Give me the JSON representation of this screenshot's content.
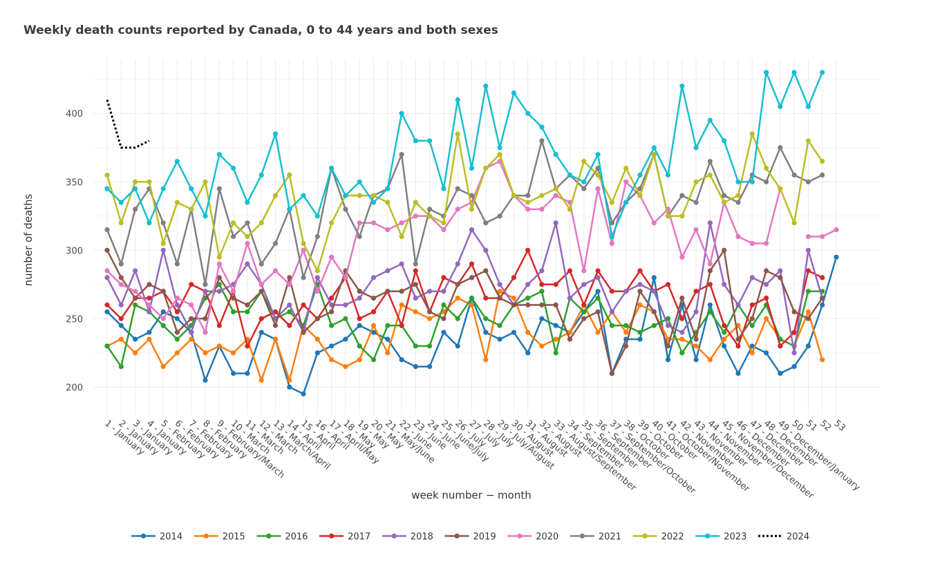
{
  "chart_data": {
    "type": "line",
    "title": "Weekly death counts reported by Canada, 0 to 44 years and both sexes",
    "xlabel": "week number − month",
    "ylabel": "number of deaths",
    "ylim": [
      180,
      440
    ],
    "yticks": [
      200,
      250,
      300,
      350,
      400
    ],
    "grid": true,
    "legend_position": "bottom",
    "categories": [
      "1 - January",
      "2 - January",
      "3 - January",
      "4 - January",
      "5 - February",
      "6 - February",
      "7 - February",
      "8 - February",
      "9 - February/March",
      "10 - March",
      "11 - March",
      "12 - March",
      "13 - March/April",
      "14 - April",
      "15 - April",
      "16 - April",
      "17 - April/May",
      "18 - May",
      "19 - May",
      "20 - May",
      "21 - May/June",
      "22 - June",
      "23 - June",
      "24 - June",
      "25 - June/July",
      "26 - July",
      "27 - July",
      "28 - July",
      "29 - July/August",
      "30 - August",
      "31 - August",
      "32 - August",
      "33 - August/September",
      "34 - September",
      "35 - September",
      "36 - September",
      "37 - September/October",
      "38 - October",
      "39 - October",
      "40 - October",
      "41 - October/November",
      "42 - November",
      "43 - November",
      "44 - November",
      "45 - November/December",
      "46 - December",
      "47 - December",
      "48 - December",
      "49 - December/January",
      "50",
      "51",
      "52",
      "53"
    ],
    "tick_labels": [
      "1 - January",
      "2 - January",
      "3 - January",
      "4 - January",
      "5 - February",
      "6 - February",
      "7 - February",
      "8 - February",
      "9 - February/March",
      "10 - March",
      "11 - March",
      "12 - March",
      "13 - March/April",
      "14 - April",
      "15 - April",
      "16 - April",
      "17 - April/May",
      "18 - May",
      "19 - May",
      "20 - May",
      "21 - May/June",
      "22 - June",
      "23 - June",
      "24 - June",
      "25 - June/July",
      "26 - July",
      "27 - July",
      "28 - July",
      "29 - July/August",
      "30 - August",
      "31 - August",
      "32 - August",
      "33 - August/September",
      "34 - September",
      "35 - September",
      "36 - September",
      "37 - September/October",
      "38 - October",
      "39 - October",
      "40 - October",
      "41 - October/November",
      "42 - November",
      "43 - November",
      "44 - November",
      "45 - November/December",
      "46 - December",
      "47 - December",
      "48 - December",
      "49 - December/January",
      "50",
      "51",
      "52",
      "53"
    ],
    "series": [
      {
        "name": "2014",
        "color": "#1f77b4",
        "dash": false,
        "markers": true,
        "values": [
          255,
          245,
          235,
          240,
          255,
          250,
          240,
          205,
          230,
          210,
          210,
          240,
          235,
          200,
          195,
          225,
          230,
          235,
          245,
          240,
          235,
          220,
          215,
          215,
          240,
          230,
          265,
          240,
          235,
          240,
          225,
          250,
          245,
          240,
          255,
          270,
          210,
          235,
          235,
          280,
          220,
          260,
          220,
          260,
          230,
          210,
          230,
          225,
          210,
          215,
          230,
          260,
          295
        ]
      },
      {
        "name": "2015",
        "color": "#ff7f0e",
        "dash": false,
        "markers": true,
        "values": [
          230,
          235,
          225,
          235,
          215,
          225,
          235,
          225,
          230,
          225,
          235,
          205,
          235,
          205,
          245,
          235,
          220,
          215,
          220,
          245,
          225,
          260,
          255,
          250,
          255,
          265,
          260,
          220,
          270,
          265,
          240,
          230,
          235,
          240,
          260,
          240,
          255,
          240,
          260,
          255,
          235,
          235,
          230,
          220,
          235,
          245,
          225,
          250,
          235,
          230,
          255,
          220,
          null
        ]
      },
      {
        "name": "2016",
        "color": "#2ca02c",
        "dash": false,
        "markers": true,
        "values": [
          230,
          215,
          260,
          255,
          245,
          235,
          245,
          265,
          275,
          255,
          255,
          270,
          250,
          255,
          245,
          275,
          245,
          250,
          230,
          220,
          245,
          245,
          230,
          230,
          260,
          250,
          265,
          250,
          245,
          260,
          265,
          270,
          225,
          265,
          255,
          265,
          245,
          245,
          240,
          245,
          250,
          225,
          240,
          255,
          240,
          260,
          245,
          260,
          235,
          230,
          270,
          270,
          null
        ]
      },
      {
        "name": "2017",
        "color": "#d62728",
        "dash": false,
        "markers": true,
        "values": [
          260,
          250,
          265,
          265,
          270,
          255,
          275,
          270,
          245,
          270,
          230,
          250,
          255,
          245,
          260,
          250,
          265,
          280,
          250,
          255,
          270,
          245,
          285,
          255,
          280,
          275,
          290,
          265,
          265,
          280,
          300,
          275,
          275,
          285,
          260,
          285,
          270,
          270,
          285,
          270,
          275,
          250,
          270,
          275,
          245,
          230,
          260,
          265,
          230,
          240,
          285,
          280,
          null
        ]
      },
      {
        "name": "2018",
        "color": "#9467bd",
        "dash": false,
        "markers": true,
        "values": [
          280,
          260,
          285,
          255,
          300,
          260,
          240,
          270,
          270,
          275,
          290,
          275,
          250,
          260,
          240,
          280,
          260,
          260,
          265,
          280,
          285,
          290,
          265,
          270,
          270,
          290,
          315,
          300,
          275,
          260,
          275,
          285,
          320,
          265,
          275,
          280,
          255,
          270,
          275,
          270,
          245,
          240,
          255,
          320,
          275,
          260,
          280,
          275,
          285,
          225,
          300,
          265,
          null
        ]
      },
      {
        "name": "2019",
        "color": "#8c564b",
        "dash": false,
        "markers": true,
        "values": [
          300,
          280,
          265,
          275,
          270,
          240,
          250,
          250,
          280,
          265,
          260,
          270,
          245,
          280,
          240,
          250,
          255,
          285,
          270,
          265,
          270,
          270,
          275,
          255,
          250,
          275,
          280,
          285,
          265,
          260,
          260,
          260,
          260,
          235,
          250,
          255,
          210,
          230,
          270,
          255,
          230,
          265,
          235,
          285,
          300,
          235,
          250,
          285,
          280,
          255,
          250,
          265,
          null
        ]
      },
      {
        "name": "2020",
        "color": "#e377c2",
        "dash": false,
        "markers": true,
        "values": [
          285,
          275,
          270,
          260,
          250,
          265,
          260,
          240,
          290,
          270,
          305,
          275,
          285,
          275,
          300,
          270,
          295,
          280,
          320,
          320,
          315,
          320,
          325,
          325,
          315,
          330,
          335,
          360,
          365,
          340,
          330,
          330,
          340,
          335,
          285,
          345,
          305,
          350,
          340,
          320,
          330,
          295,
          315,
          290,
          335,
          310,
          305,
          305,
          345,
          null,
          310,
          310,
          315
        ]
      },
      {
        "name": "2021",
        "color": "#7f7f7f",
        "dash": false,
        "markers": true,
        "values": [
          315,
          290,
          330,
          345,
          320,
          290,
          330,
          275,
          345,
          310,
          320,
          290,
          305,
          330,
          280,
          310,
          360,
          330,
          310,
          340,
          345,
          370,
          290,
          330,
          325,
          345,
          340,
          320,
          325,
          340,
          340,
          380,
          345,
          355,
          345,
          360,
          320,
          335,
          345,
          370,
          325,
          340,
          335,
          365,
          340,
          335,
          355,
          350,
          375,
          355,
          350,
          355,
          null
        ]
      },
      {
        "name": "2022",
        "color": "#bcbd22",
        "dash": false,
        "markers": true,
        "values": [
          355,
          320,
          350,
          350,
          305,
          335,
          330,
          350,
          295,
          320,
          310,
          320,
          340,
          355,
          305,
          285,
          320,
          340,
          340,
          340,
          335,
          310,
          335,
          325,
          320,
          385,
          330,
          360,
          370,
          340,
          335,
          340,
          345,
          330,
          365,
          355,
          335,
          360,
          340,
          370,
          325,
          325,
          350,
          355,
          335,
          340,
          385,
          360,
          345,
          320,
          380,
          365,
          null
        ]
      },
      {
        "name": "2023",
        "color": "#17becf",
        "dash": false,
        "markers": true,
        "values": [
          345,
          335,
          345,
          320,
          345,
          365,
          345,
          325,
          370,
          360,
          335,
          355,
          385,
          330,
          340,
          325,
          360,
          340,
          350,
          335,
          345,
          400,
          380,
          380,
          345,
          410,
          360,
          420,
          375,
          415,
          400,
          390,
          370,
          355,
          350,
          370,
          310,
          335,
          355,
          375,
          355,
          420,
          375,
          395,
          380,
          350,
          350,
          430,
          405,
          430,
          405,
          430,
          null
        ]
      },
      {
        "name": "2024",
        "color": "#000000",
        "dash": true,
        "markers": false,
        "values": [
          410,
          375,
          375,
          380,
          null,
          null,
          null,
          null,
          null,
          null,
          null,
          null,
          null,
          null,
          null,
          null,
          null,
          null,
          null,
          null,
          null,
          null,
          null,
          null,
          null,
          null,
          null,
          null,
          null,
          null,
          null,
          null,
          null,
          null,
          null,
          null,
          null,
          null,
          null,
          null,
          null,
          null,
          null,
          null,
          null,
          null,
          null,
          null,
          null,
          null,
          null,
          null,
          null
        ]
      }
    ]
  }
}
